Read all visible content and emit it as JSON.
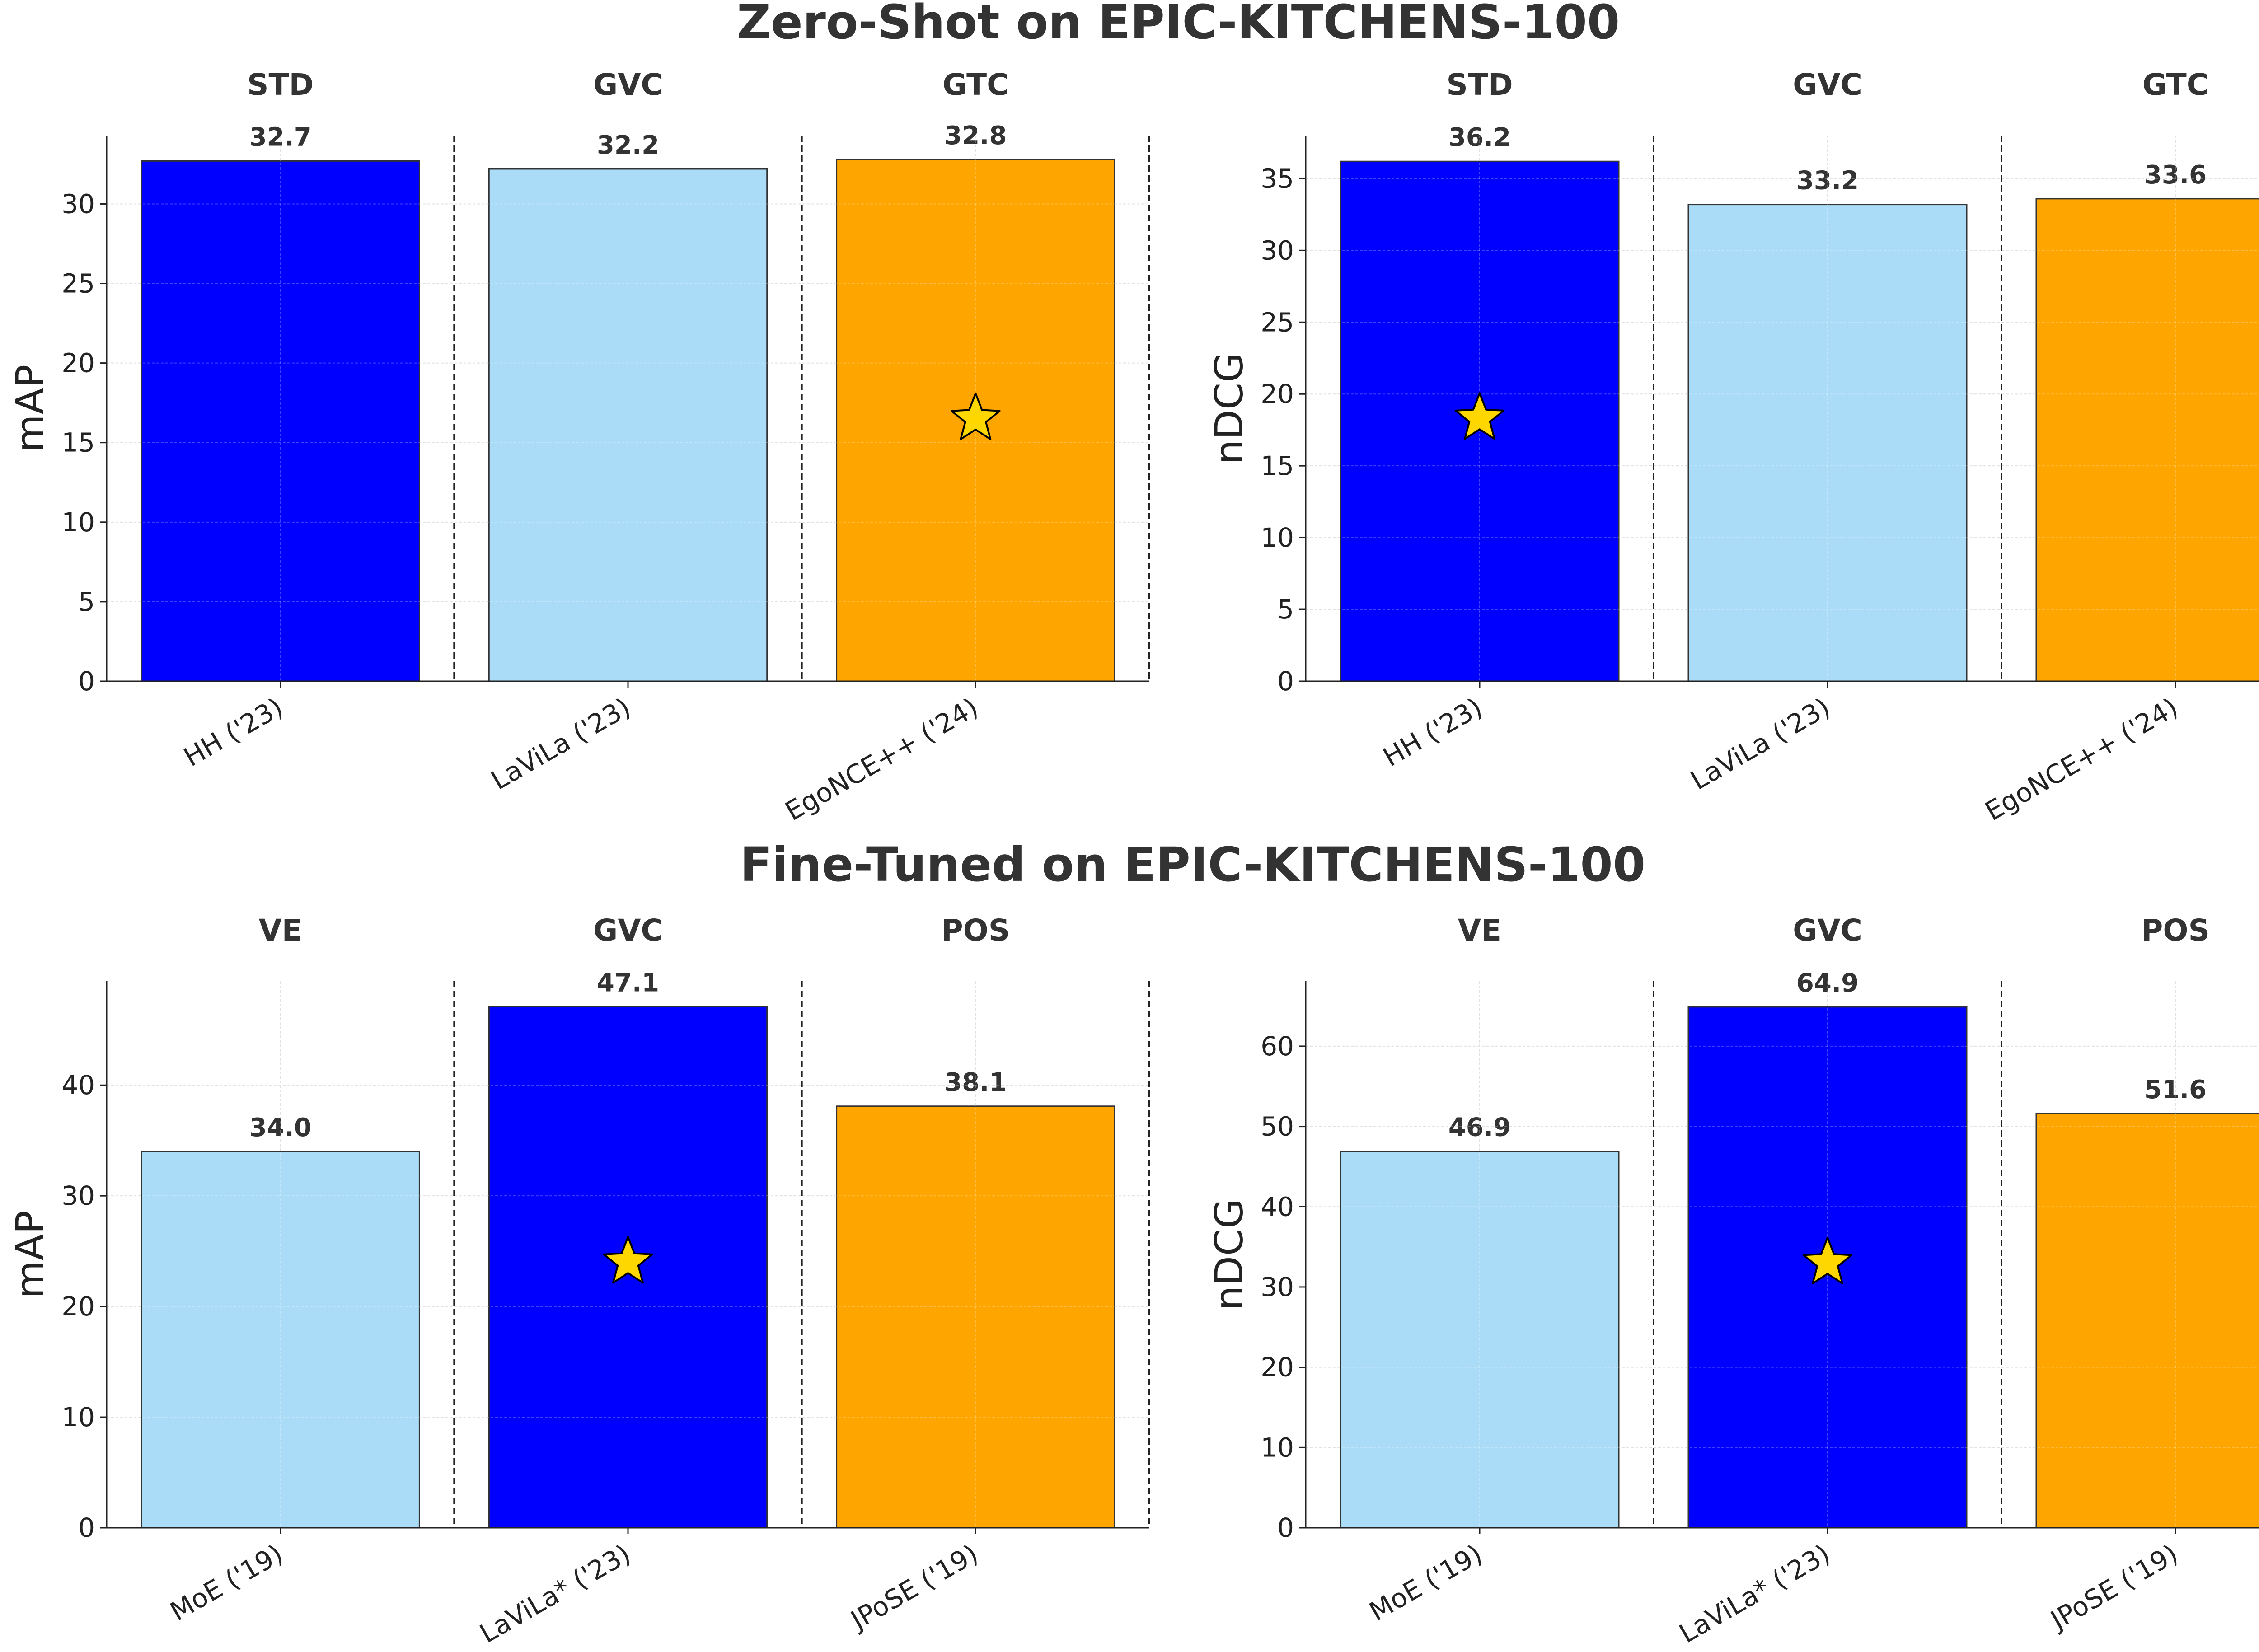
{
  "titles": {
    "top": "Zero-Shot on EPIC-KITCHENS-100",
    "bottom": "Fine-Tuned on EPIC-KITCHENS-100"
  },
  "colors": {
    "dark_blue": "#0000ff",
    "light_blue": "#aadcf8",
    "orange": "#ffa500",
    "star": "#ffd700",
    "grid": "#d9d9d9",
    "text": "#333333"
  },
  "chart_data": [
    {
      "type": "bar",
      "section": "top",
      "ylabel": "mAP",
      "ylim": [
        0,
        34.3
      ],
      "yticks": [
        0,
        5,
        10,
        15,
        20,
        25,
        30
      ],
      "categories": [
        "HH ('23)",
        "LaViLa ('23)",
        "EgoNCE++ ('24)"
      ],
      "groups": [
        "STD",
        "GVC",
        "GTC"
      ],
      "values": [
        32.7,
        32.2,
        32.8
      ],
      "value_labels": [
        "32.7",
        "32.2",
        "32.8"
      ],
      "colors": [
        "dark_blue",
        "light_blue",
        "orange"
      ],
      "star": {
        "index": 2,
        "value": 16.5,
        "filled": false
      }
    },
    {
      "type": "bar",
      "section": "top",
      "ylabel": "nDCG",
      "ylim": [
        0,
        38.0
      ],
      "yticks": [
        0,
        5,
        10,
        15,
        20,
        25,
        30,
        35
      ],
      "categories": [
        "HH ('23)",
        "LaViLa ('23)",
        "EgoNCE++ ('24)"
      ],
      "groups": [
        "STD",
        "GVC",
        "GTC"
      ],
      "values": [
        36.2,
        33.2,
        33.6
      ],
      "value_labels": [
        "36.2",
        "33.2",
        "33.6"
      ],
      "colors": [
        "dark_blue",
        "light_blue",
        "orange"
      ],
      "star": {
        "index": 0,
        "value": 18.3,
        "filled": true
      }
    },
    {
      "type": "bar",
      "section": "bottom",
      "ylabel": "mAP",
      "ylim": [
        0,
        49.4
      ],
      "yticks": [
        0,
        10,
        20,
        30,
        40
      ],
      "categories": [
        "MoE ('19)",
        "LaViLa* ('23)",
        "JPoSE ('19)"
      ],
      "groups": [
        "VE",
        "GVC",
        "POS"
      ],
      "values": [
        34.0,
        47.1,
        38.1
      ],
      "value_labels": [
        "34.0",
        "47.1",
        "38.1"
      ],
      "colors": [
        "light_blue",
        "dark_blue",
        "orange"
      ],
      "star": {
        "index": 1,
        "value": 24.0,
        "filled": true
      }
    },
    {
      "type": "bar",
      "section": "bottom",
      "ylabel": "nDCG",
      "ylim": [
        0,
        68.1
      ],
      "yticks": [
        0,
        10,
        20,
        30,
        40,
        50,
        60
      ],
      "categories": [
        "MoE ('19)",
        "LaViLa* ('23)",
        "JPoSE ('19)"
      ],
      "groups": [
        "VE",
        "GVC",
        "POS"
      ],
      "values": [
        46.9,
        64.9,
        51.6
      ],
      "value_labels": [
        "46.9",
        "64.9",
        "51.6"
      ],
      "colors": [
        "light_blue",
        "dark_blue",
        "orange"
      ],
      "star": {
        "index": 1,
        "value": 33.0,
        "filled": true
      }
    }
  ]
}
